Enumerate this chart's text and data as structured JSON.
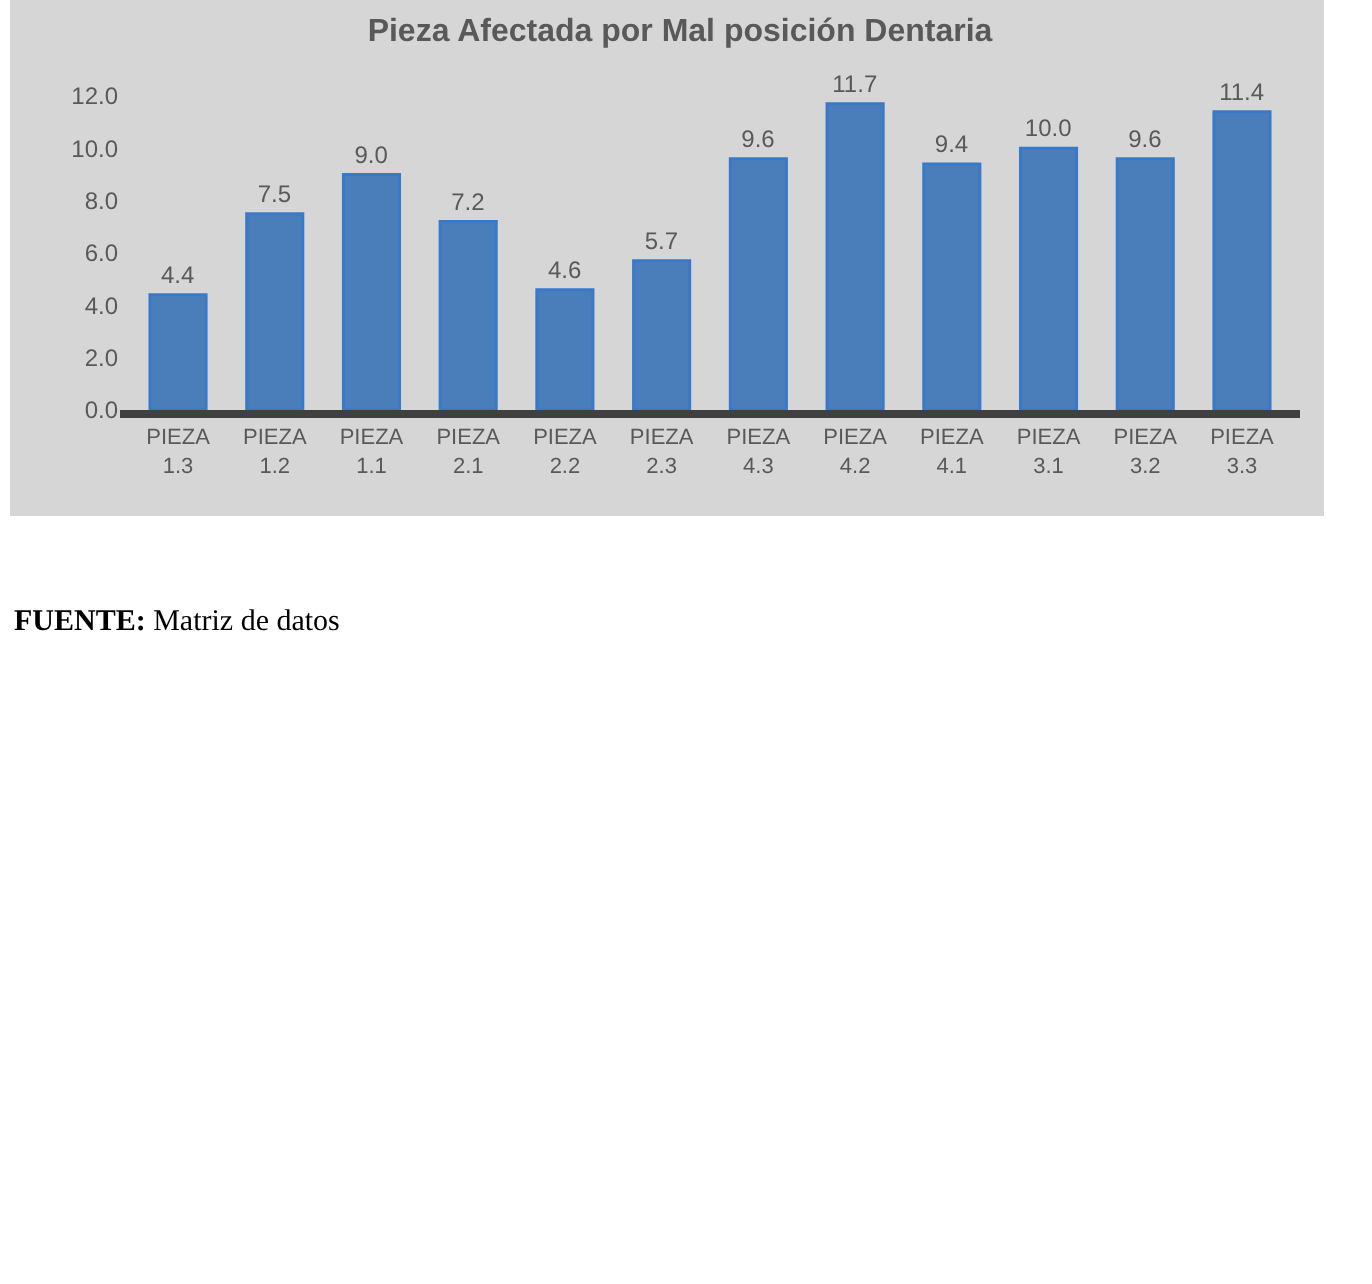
{
  "chart_data": {
    "type": "bar",
    "title": "Pieza Afectada por Mal posición Dentaria",
    "categories": [
      "PIEZA 1.3",
      "PIEZA 1.2",
      "PIEZA 1.1",
      "PIEZA 2.1",
      "PIEZA 2.2",
      "PIEZA 2.3",
      "PIEZA 4.3",
      "PIEZA 4.2",
      "PIEZA 4.1",
      "PIEZA 3.1",
      "PIEZA 3.2",
      "PIEZA 3.3"
    ],
    "values": [
      4.4,
      7.5,
      9.0,
      7.2,
      4.6,
      5.7,
      9.6,
      11.7,
      9.4,
      10.0,
      9.6,
      11.4
    ],
    "value_labels": [
      "4.4",
      "7.5",
      "9.0",
      "7.2",
      "4.6",
      "5.7",
      "9.6",
      "11.7",
      "9.4",
      "10.0",
      "9.6",
      "11.4"
    ],
    "color": "#4a7ebb",
    "ylim": [
      0,
      12
    ],
    "yticks": [
      {
        "value": 0,
        "label": "0.0"
      },
      {
        "value": 2,
        "label": "2.0"
      },
      {
        "value": 4,
        "label": "4.0"
      },
      {
        "value": 6,
        "label": "6.0"
      },
      {
        "value": 8,
        "label": "8.0"
      },
      {
        "value": 10,
        "label": "10.0"
      },
      {
        "value": 12,
        "label": "12.0"
      }
    ],
    "annotations": [
      "FUENTE: Matriz de datos"
    ]
  }
}
